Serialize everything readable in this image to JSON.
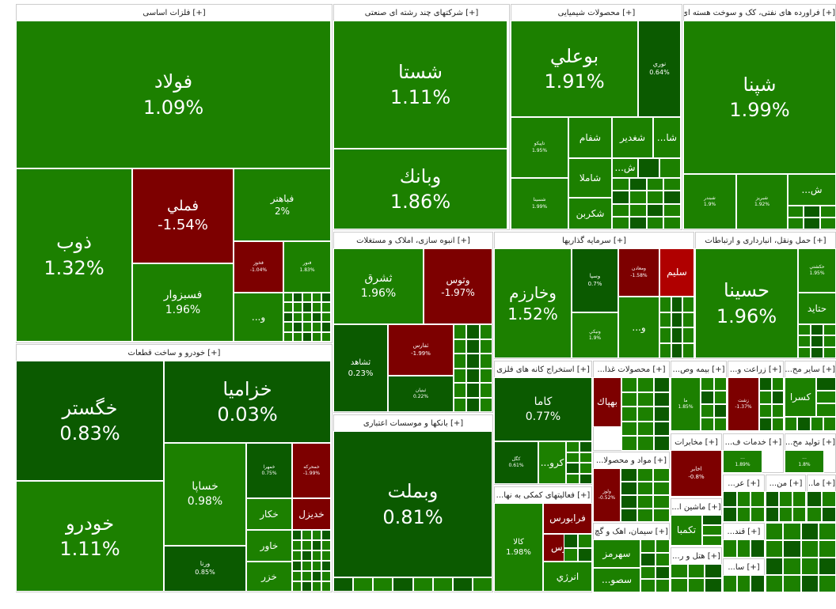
{
  "sectors": [
    {
      "title": "[+] فلزات اساسی",
      "tiles": [
        {
          "label": "فولاد",
          "change": "1.09%",
          "color": "#1c8000"
        },
        {
          "label": "ذوب",
          "change": "1.32%",
          "color": "#1c8000"
        },
        {
          "label": "فملي",
          "change": "-1.54%",
          "color": "#7d0000"
        },
        {
          "label": "فباهنر",
          "change": "2%",
          "color": "#1c8000"
        },
        {
          "label": "فسبزوار",
          "change": "1.96%",
          "color": "#1c8000"
        },
        {
          "label": "فخوز",
          "change": "-1.04%",
          "color": "#7d0000"
        },
        {
          "label": "فنور",
          "change": "1.83%",
          "color": "#1c8000"
        },
        {
          "label": "...و",
          "color": "#1c8000"
        }
      ]
    },
    {
      "title": "[+] خودرو و ساخت قطعات",
      "tiles": [
        {
          "label": "خگستر",
          "change": "0.83%",
          "color": "#0b5a00"
        },
        {
          "label": "خودرو",
          "change": "1.11%",
          "color": "#1c8000"
        },
        {
          "label": "خزامیا",
          "change": "0.03%",
          "color": "#0b5a00"
        },
        {
          "label": "خساپا",
          "change": "0.98%",
          "color": "#1c8000"
        },
        {
          "label": "ورنا",
          "change": "0.85%",
          "color": "#0b5a00"
        },
        {
          "label": "خمهرا",
          "change": "0.75%",
          "color": "#0b5a00"
        },
        {
          "label": "خمحركه",
          "change": "-1.99%",
          "color": "#7d0000"
        },
        {
          "label": "خكار",
          "color": "#1c8000"
        },
        {
          "label": "خديزل",
          "color": "#7d0000"
        },
        {
          "label": "خاور",
          "color": "#1c8000"
        },
        {
          "label": "خزر",
          "color": "#1c8000"
        }
      ]
    },
    {
      "title": "[+] شرکتهای چند رشته ای صنعتی",
      "tiles": [
        {
          "label": "شستا",
          "change": "1.11%",
          "color": "#1c8000"
        },
        {
          "label": "وبانك",
          "change": "1.86%",
          "color": "#1c8000"
        }
      ]
    },
    {
      "title": "[+] محصولات شیمیایی",
      "tiles": [
        {
          "label": "بوعلي",
          "change": "1.91%",
          "color": "#1c8000"
        },
        {
          "label": "نوري",
          "change": "0.64%",
          "color": "#0b5a00"
        },
        {
          "label": "تاپيكو",
          "change": "1.95%",
          "color": "#1c8000"
        },
        {
          "label": "شفام",
          "color": "#1c8000"
        },
        {
          "label": "شغدير",
          "color": "#1c8000"
        },
        {
          "label": "...شا",
          "color": "#1c8000"
        },
        {
          "label": "شاملا",
          "color": "#1c8000"
        },
        {
          "label": "...ش",
          "color": "#1c8000"
        },
        {
          "label": "شسینا",
          "change": "1.99%",
          "color": "#1c8000"
        },
        {
          "label": "شكربن",
          "color": "#1c8000"
        }
      ]
    },
    {
      "title": "[+] فراورده های نفتی، کک و سوخت هسته ای",
      "tiles": [
        {
          "label": "شپنا",
          "change": "1.99%",
          "color": "#1c8000"
        },
        {
          "label": "شبندر",
          "change": "1.9%",
          "color": "#1c8000"
        },
        {
          "label": "شبريز",
          "change": "1.92%",
          "color": "#1c8000"
        },
        {
          "label": "...ش",
          "color": "#1c8000"
        }
      ]
    },
    {
      "title": "[+] انبوه سازی، املاک و مستغلات",
      "tiles": [
        {
          "label": "ثشرق",
          "change": "1.96%",
          "color": "#1c8000"
        },
        {
          "label": "وثوس",
          "change": "-1.97%",
          "color": "#7d0000"
        },
        {
          "label": "ثشاهد",
          "change": "0.23%",
          "color": "#0b5a00"
        },
        {
          "label": "ثفارس",
          "change": "-1.99%",
          "color": "#7d0000"
        },
        {
          "label": "ثبنيان",
          "change": "0.22%",
          "color": "#0b5a00"
        }
      ]
    },
    {
      "title": "[+] بانکها و موسسات اعتباری",
      "tiles": [
        {
          "label": "وبملت",
          "change": "0.81%",
          "color": "#0b5a00"
        }
      ]
    },
    {
      "title": "[+] سرمایه گذاریها",
      "tiles": [
        {
          "label": "وخارزم",
          "change": "1.52%",
          "color": "#1c8000"
        },
        {
          "label": "وسپا",
          "change": "0.7%",
          "color": "#0b5a00"
        },
        {
          "label": "ومعادن",
          "change": "-1.58%",
          "color": "#7d0000"
        },
        {
          "label": "سليم",
          "color": "#b00000"
        },
        {
          "label": "ونيكي",
          "change": "1.9%",
          "color": "#1c8000"
        },
        {
          "label": "...و",
          "color": "#1c8000"
        }
      ]
    },
    {
      "title": "[+] حمل ونقل، انبارداری و ارتباطات",
      "tiles": [
        {
          "label": "حسينا",
          "change": "1.96%",
          "color": "#1c8000"
        },
        {
          "label": "حكشتي",
          "change": "1.95%",
          "color": "#1c8000"
        },
        {
          "label": "حتاید",
          "color": "#1c8000"
        }
      ]
    },
    {
      "title": "[+] استخراج کانه های فلزی",
      "tiles": [
        {
          "label": "کاما",
          "change": "0.77%",
          "color": "#0b5a00"
        },
        {
          "label": "كگل",
          "change": "0.61%",
          "color": "#0b5a00"
        },
        {
          "label": "...كرو",
          "color": "#1c8000"
        }
      ]
    },
    {
      "title": "[+] محصولات غذا...",
      "tiles": [
        {
          "label": "بهپاك",
          "color": "#7d0000"
        }
      ]
    },
    {
      "title": "[+] بیمه وص...",
      "tiles": [
        {
          "label": "ما",
          "change": "1.85%",
          "color": "#1c8000"
        }
      ]
    },
    {
      "title": "[+] زراعت و...",
      "tiles": [
        {
          "label": "زشت",
          "change": "-1.37%",
          "color": "#7d0000"
        }
      ]
    },
    {
      "title": "[+] سایر مح...",
      "tiles": [
        {
          "label": "کسرا",
          "color": "#1c8000"
        }
      ]
    },
    {
      "title": "[+] مواد و محصولا...",
      "tiles": [
        {
          "label": "ولوز",
          "change": "-0.52%",
          "color": "#7d0000"
        }
      ]
    },
    {
      "title": "[+] فعالیتهای کمکی به نها...",
      "tiles": [
        {
          "label": "کالا",
          "change": "1.98%",
          "color": "#1c8000"
        },
        {
          "label": "فرابورس",
          "color": "#7d0000"
        },
        {
          "label": "بورس",
          "color": "#7d0000"
        },
        {
          "label": "انرژي",
          "color": "#1c8000"
        }
      ]
    },
    {
      "title": "[+] مخابرات",
      "tiles": [
        {
          "label": "اخابر",
          "change": "-0.8%",
          "color": "#7d0000"
        }
      ]
    },
    {
      "title": "[+] خدمات ف...",
      "tiles": [
        {
          "label": "...",
          "change": "1.89%",
          "color": "#1c8000"
        }
      ]
    },
    {
      "title": "[+] تولید مح...",
      "tiles": [
        {
          "label": "...",
          "change": "1.8%",
          "color": "#1c8000"
        }
      ]
    },
    {
      "title": "[+] سیمان، اهک و گچ",
      "tiles": [
        {
          "label": "سهرمز",
          "color": "#1c8000"
        },
        {
          "label": "...سصو",
          "color": "#1c8000"
        }
      ]
    },
    {
      "title": "[+] ماشین ا...",
      "tiles": [
        {
          "label": "تكمبا",
          "color": "#1c8000"
        }
      ]
    },
    {
      "title": "[+] عر...",
      "tiles": []
    },
    {
      "title": "[+] من...",
      "tiles": []
    },
    {
      "title": "[+] ما...",
      "tiles": []
    },
    {
      "title": "[+] قند...",
      "tiles": []
    },
    {
      "title": "[+] هتل و ر...",
      "tiles": []
    },
    {
      "title": "[+] سا...",
      "tiles": []
    }
  ]
}
